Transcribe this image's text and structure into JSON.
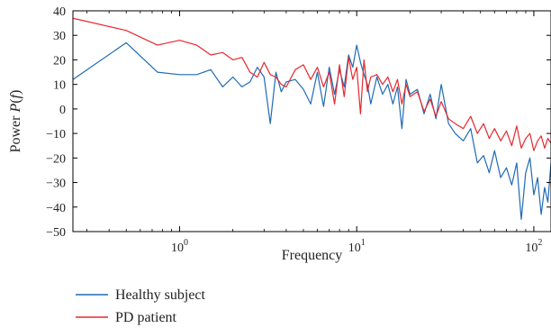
{
  "chart_data": {
    "type": "line",
    "xscale": "log",
    "xlim": [
      0.25,
      125
    ],
    "ylim": [
      -50,
      40
    ],
    "xlabel": "Frequency",
    "ylabel": "Power P(f)",
    "x_ticks": [
      1,
      10,
      100
    ],
    "x_tick_labels": [
      {
        "base": "10",
        "exp": "0"
      },
      {
        "base": "10",
        "exp": "1"
      },
      {
        "base": "10",
        "exp": "2"
      }
    ],
    "y_ticks": [
      40,
      30,
      20,
      10,
      0,
      -10,
      -20,
      -30,
      -40,
      -50
    ],
    "y_tick_labels": [
      "40",
      "30",
      "20",
      "10",
      "0",
      "−10",
      "−20",
      "−30",
      "−40",
      "−50"
    ],
    "grid": false,
    "legend_position": "below-left",
    "series": [
      {
        "name": "Healthy subject",
        "color": "#1f6bb5",
        "x": [
          0.25,
          0.5,
          0.75,
          1.0,
          1.25,
          1.5,
          1.75,
          2.0,
          2.25,
          2.5,
          2.75,
          3.0,
          3.25,
          3.5,
          3.75,
          4.0,
          4.5,
          5.0,
          5.5,
          6.0,
          6.5,
          7.0,
          7.5,
          8.0,
          8.5,
          9.0,
          9.5,
          10.0,
          10.5,
          11.0,
          11.5,
          12.0,
          13.0,
          14.0,
          15.0,
          16.0,
          17.0,
          18.0,
          19.0,
          20.0,
          22.0,
          24.0,
          26.0,
          28.0,
          30.0,
          33.0,
          36.0,
          40.0,
          44.0,
          48.0,
          52.0,
          56.0,
          60.0,
          65.0,
          70.0,
          75.0,
          80.0,
          85.0,
          90.0,
          95.0,
          100.0,
          105.0,
          110.0,
          115.0,
          120.0,
          125.0
        ],
        "y": [
          12,
          27,
          15,
          14,
          14,
          16,
          9,
          13,
          9,
          11,
          17,
          13,
          -6,
          15,
          7,
          11,
          12,
          8,
          2,
          15,
          1,
          17,
          6,
          16,
          9,
          22,
          17,
          26,
          19,
          14,
          10,
          2,
          13,
          6,
          10,
          2,
          9,
          -8,
          12,
          6,
          8,
          -2,
          6,
          -4,
          10,
          -6,
          -10,
          -13,
          -8,
          -22,
          -19,
          -26,
          -17,
          -28,
          -24,
          -31,
          -22,
          -45,
          -26,
          -20,
          -35,
          -28,
          -43,
          -32,
          -38,
          -22
        ]
      },
      {
        "name": "PD patient",
        "color": "#e8282e",
        "x": [
          0.25,
          0.5,
          0.75,
          1.0,
          1.25,
          1.5,
          1.75,
          2.0,
          2.25,
          2.5,
          2.75,
          3.0,
          3.25,
          3.5,
          3.75,
          4.0,
          4.5,
          5.0,
          5.5,
          6.0,
          6.5,
          7.0,
          7.5,
          8.0,
          8.5,
          9.0,
          9.5,
          10.0,
          10.5,
          11.0,
          11.5,
          12.0,
          13.0,
          14.0,
          15.0,
          16.0,
          17.0,
          18.0,
          19.0,
          20.0,
          22.0,
          24.0,
          26.0,
          28.0,
          30.0,
          33.0,
          36.0,
          40.0,
          44.0,
          48.0,
          52.0,
          56.0,
          60.0,
          65.0,
          70.0,
          75.0,
          80.0,
          85.0,
          90.0,
          95.0,
          100.0,
          105.0,
          110.0,
          115.0,
          120.0,
          125.0
        ],
        "y": [
          37,
          32,
          26,
          28,
          26,
          22,
          23,
          20,
          21,
          15,
          13,
          19,
          14,
          13,
          10,
          9,
          16,
          18,
          12,
          17,
          9,
          15,
          2,
          18,
          5,
          21,
          12,
          17,
          -2,
          20,
          7,
          13,
          14,
          10,
          13,
          7,
          12,
          2,
          10,
          5,
          7,
          -1,
          4,
          -3,
          3,
          -4,
          -6,
          -8,
          -3,
          -10,
          -6,
          -12,
          -8,
          -13,
          -9,
          -15,
          -7,
          -16,
          -12,
          -10,
          -17,
          -13,
          -11,
          -16,
          -12,
          -14
        ]
      }
    ]
  }
}
